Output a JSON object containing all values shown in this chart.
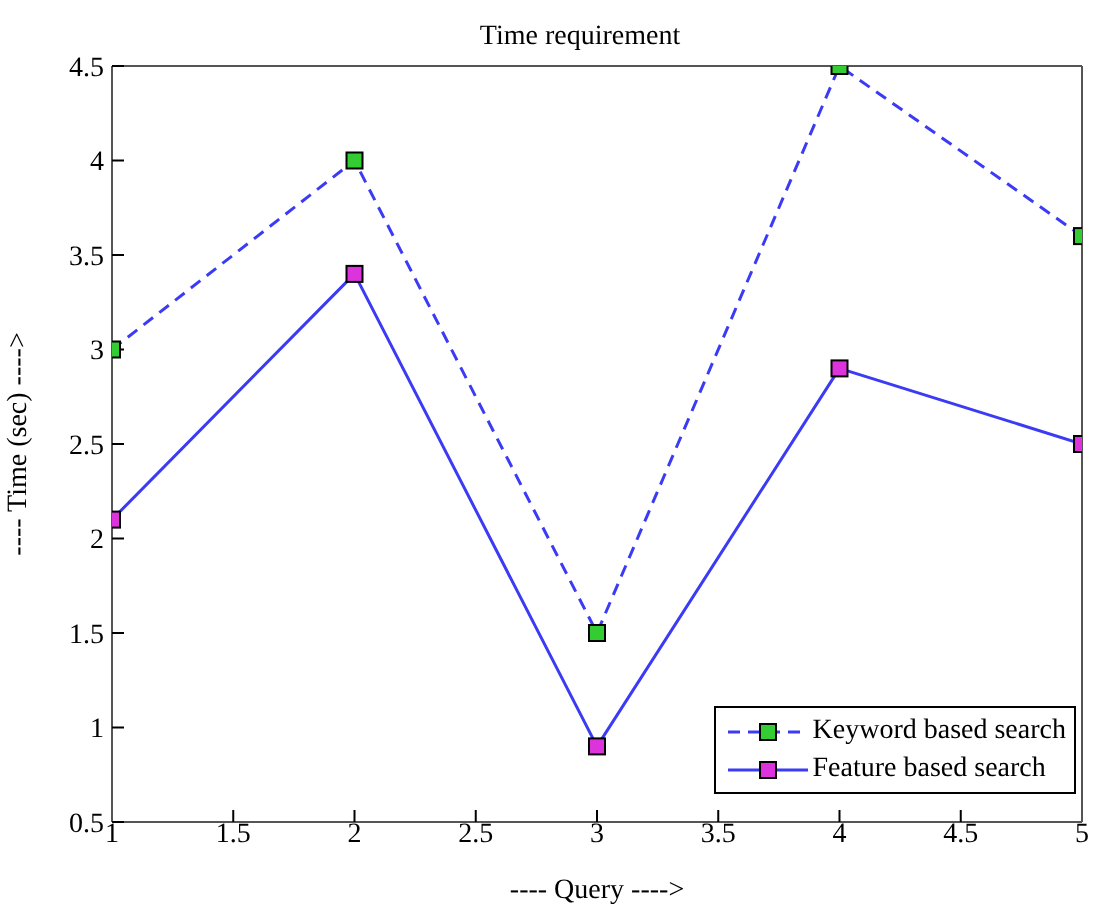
{
  "chart_data": {
    "type": "line",
    "title": "Time requirement",
    "xlabel": "----   Query   ---->",
    "ylabel": "----   Time (sec)   ---->",
    "x": [
      1,
      2,
      3,
      4,
      5
    ],
    "series": [
      {
        "name": "Keyword based search",
        "color": "#3b3bf5",
        "values": [
          3,
          4,
          1.5,
          4.5,
          3.6
        ],
        "line_style": "dashed"
      },
      {
        "name": "Feature based search",
        "color": "#3b3bf5",
        "values": [
          2.1,
          3.4,
          0.9,
          2.9,
          2.5
        ],
        "line_style": "solid"
      }
    ],
    "xlim": [
      1,
      5
    ],
    "xticks": [
      1,
      1.5,
      2,
      2.5,
      3,
      3.5,
      4,
      4.5,
      5
    ],
    "ylim": [
      0.5,
      4.5
    ],
    "yticks": [
      0.5,
      1,
      1.5,
      2,
      2.5,
      3,
      3.5,
      4,
      4.5
    ],
    "grid": false,
    "legend": "bottom right",
    "marker": "square"
  }
}
